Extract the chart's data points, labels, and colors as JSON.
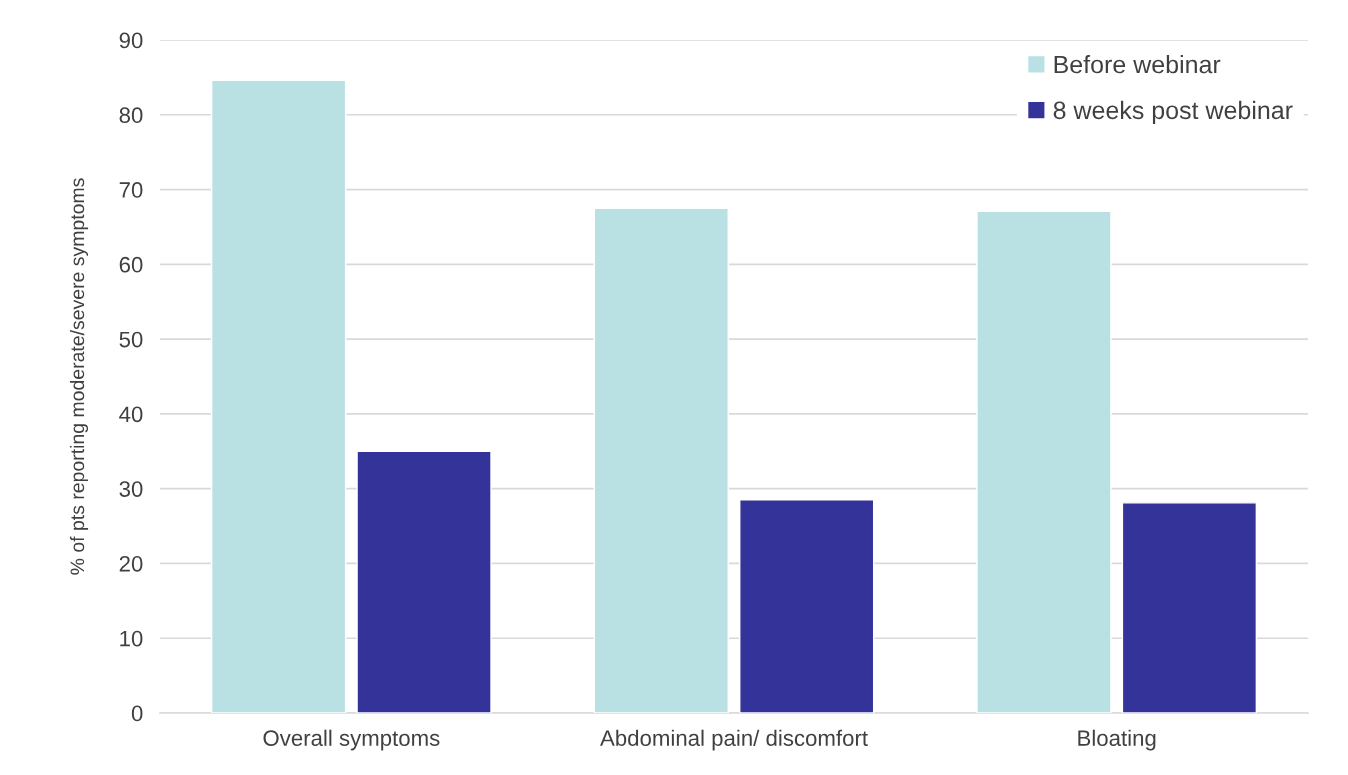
{
  "chart_data": {
    "type": "bar",
    "ylabel": "% of pts reporting moderate/severe symptoms",
    "categories": [
      "Overall symptoms",
      "Abdominal pain/ discomfort",
      "Bloating"
    ],
    "series": [
      {
        "name": "Before webinar",
        "color": "#b9e0e2",
        "values": [
          84.6,
          67.5,
          67.1
        ]
      },
      {
        "name": "8 weeks post webinar",
        "color": "#333399",
        "values": [
          35.0,
          28.5,
          28.1
        ]
      }
    ],
    "ylim": [
      0,
      90
    ],
    "yticks": [
      0,
      10,
      20,
      30,
      40,
      50,
      60,
      70,
      80,
      90
    ],
    "grid": "y",
    "legend": "top right"
  }
}
